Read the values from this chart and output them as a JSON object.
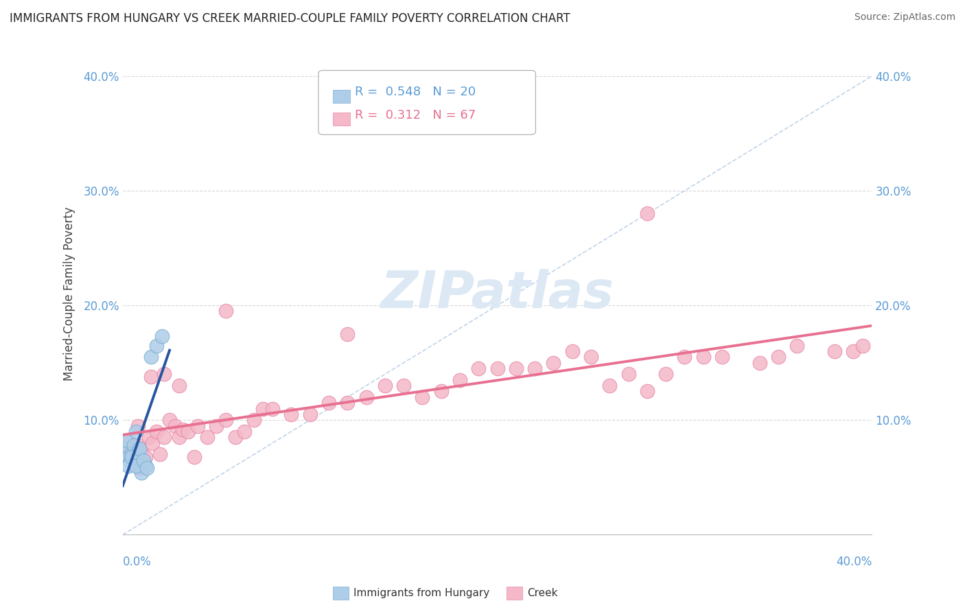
{
  "title": "IMMIGRANTS FROM HUNGARY VS CREEK MARRIED-COUPLE FAMILY POVERTY CORRELATION CHART",
  "source": "Source: ZipAtlas.com",
  "ylabel": "Married-Couple Family Poverty",
  "xlim": [
    0.0,
    0.4
  ],
  "ylim": [
    0.0,
    0.42
  ],
  "legend_hungary_R": "0.548",
  "legend_hungary_N": "20",
  "legend_creek_R": "0.312",
  "legend_creek_N": "67",
  "blue_fill": "#aecde8",
  "blue_edge": "#7aafd4",
  "blue_line": "#2855a0",
  "pink_fill": "#f4b8c8",
  "pink_edge": "#e88aaa",
  "pink_line": "#e87090",
  "diag_color": "#c0d4e8",
  "grid_color": "#d8d8d8",
  "tick_color": "#5b9bd5",
  "hungary_x": [
    0.001,
    0.002,
    0.003,
    0.004,
    0.005,
    0.006,
    0.007,
    0.008,
    0.009,
    0.01,
    0.012,
    0.015,
    0.018,
    0.021,
    0.003,
    0.005,
    0.007,
    0.009,
    0.011,
    0.013
  ],
  "hungary_y": [
    0.075,
    0.082,
    0.068,
    0.064,
    0.07,
    0.078,
    0.09,
    0.072,
    0.06,
    0.054,
    0.06,
    0.155,
    0.165,
    0.173,
    0.06,
    0.068,
    0.06,
    0.075,
    0.065,
    0.058
  ],
  "creek_x": [
    0.002,
    0.003,
    0.004,
    0.005,
    0.006,
    0.007,
    0.008,
    0.009,
    0.01,
    0.012,
    0.014,
    0.016,
    0.018,
    0.02,
    0.022,
    0.025,
    0.028,
    0.03,
    0.032,
    0.035,
    0.038,
    0.04,
    0.045,
    0.05,
    0.055,
    0.06,
    0.065,
    0.07,
    0.075,
    0.08,
    0.09,
    0.1,
    0.11,
    0.12,
    0.13,
    0.14,
    0.15,
    0.16,
    0.17,
    0.18,
    0.19,
    0.2,
    0.21,
    0.22,
    0.23,
    0.24,
    0.25,
    0.26,
    0.27,
    0.28,
    0.29,
    0.3,
    0.31,
    0.32,
    0.34,
    0.35,
    0.36,
    0.38,
    0.39,
    0.008,
    0.015,
    0.022,
    0.03,
    0.055,
    0.12,
    0.28,
    0.395
  ],
  "creek_y": [
    0.075,
    0.082,
    0.07,
    0.068,
    0.065,
    0.072,
    0.078,
    0.058,
    0.072,
    0.068,
    0.085,
    0.08,
    0.09,
    0.07,
    0.085,
    0.1,
    0.095,
    0.085,
    0.092,
    0.09,
    0.068,
    0.095,
    0.085,
    0.095,
    0.1,
    0.085,
    0.09,
    0.1,
    0.11,
    0.11,
    0.105,
    0.105,
    0.115,
    0.115,
    0.12,
    0.13,
    0.13,
    0.12,
    0.125,
    0.135,
    0.145,
    0.145,
    0.145,
    0.145,
    0.15,
    0.16,
    0.155,
    0.13,
    0.14,
    0.125,
    0.14,
    0.155,
    0.155,
    0.155,
    0.15,
    0.155,
    0.165,
    0.16,
    0.16,
    0.095,
    0.138,
    0.14,
    0.13,
    0.195,
    0.175,
    0.28,
    0.165
  ]
}
